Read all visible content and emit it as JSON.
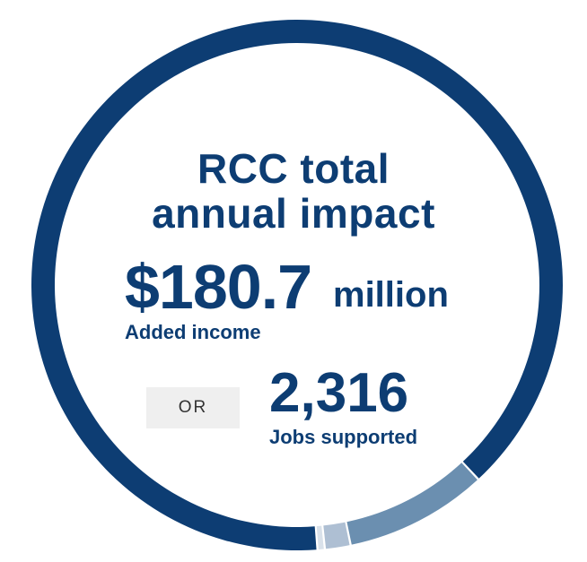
{
  "title_line1": "RCC total",
  "title_line2": "annual impact",
  "income": {
    "value": "$180.7",
    "unit": "million",
    "label": "Added income"
  },
  "separator": "OR",
  "jobs": {
    "value": "2,316",
    "label": "Jobs supported"
  },
  "chart_data": {
    "type": "pie",
    "style": "donut",
    "title": "RCC total annual impact",
    "slices": [
      {
        "value": 80,
        "color": "#0d3d73"
      },
      {
        "value": 7.8,
        "color": "#6b8fb0"
      },
      {
        "value": 1.4,
        "color": "#aebfd3"
      },
      {
        "value": 0.4,
        "color": "#d9e1ea"
      }
    ],
    "start_angle_deg": 85.6,
    "direction": "clockwise"
  }
}
